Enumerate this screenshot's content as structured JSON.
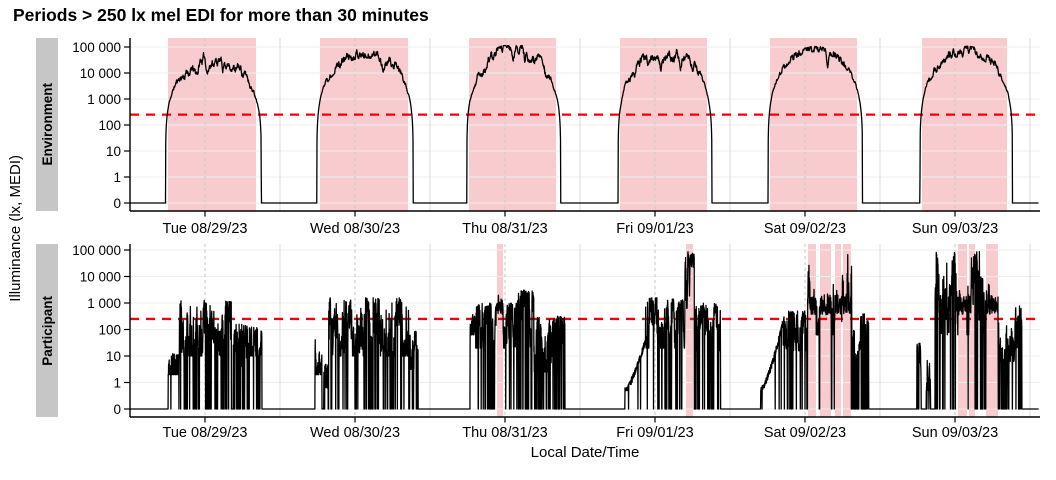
{
  "title": "Periods > 250 lx mel EDI for more than 30 minutes",
  "chart_data": {
    "type": "line",
    "title": "Periods > 250 lx mel EDI for more than 30 minutes",
    "xlabel": "Local Date/Time",
    "ylabel": "Illuminance (lx, MEDI)",
    "y_scale": "symlog",
    "y_ticks": {
      "values": [
        0,
        1,
        10,
        100,
        1000,
        10000,
        100000
      ],
      "labels": [
        "0",
        "1",
        "10",
        "100",
        "1 000",
        "10 000",
        "100 000"
      ]
    },
    "x_ticks": [
      "Tue 08/29/23",
      "Wed 08/30/23",
      "Thu 08/31/23",
      "Fri 09/01/23",
      "Sat 09/02/23",
      "Sun 09/03/23"
    ],
    "x_tick_hours": [
      12,
      36,
      60,
      84,
      108,
      132
    ],
    "x_range_hours": [
      0,
      145.4
    ],
    "threshold_lx": 250,
    "threshold_style": "dashed",
    "threshold_color": "#f40000",
    "band_color": "#f8cbce",
    "line_color": "#000000",
    "grid": {
      "h_color": "#ececec",
      "v_solid_color": "#e0e0e0",
      "v_dashed_color": "#cfcfcf"
    },
    "seed": 11,
    "panels": [
      {
        "name": "Environment",
        "bands": [
          [
            6.08,
            20.16
          ],
          [
            30.4,
            44.48
          ],
          [
            54.24,
            68.16
          ],
          [
            78.4,
            92.32
          ],
          [
            102.4,
            116.32
          ],
          [
            126.72,
            140.32
          ]
        ],
        "days": [
          {
            "wake": 5.7,
            "dark": 21.0,
            "peak": 4.55,
            "rough": 0.3,
            "dips": [
              [
                10.6,
                0.5,
                0.5
              ],
              [
                12.4,
                0.4,
                0.3
              ],
              [
                14.8,
                0.35,
                0.25
              ]
            ]
          },
          {
            "wake": 29.9,
            "dark": 45.3,
            "peak": 4.8,
            "rough": 0.22,
            "dips": [
              [
                40.5,
                0.35,
                0.3
              ]
            ]
          },
          {
            "wake": 53.9,
            "dark": 68.9,
            "peak": 4.85,
            "rough": 0.28,
            "dips": [
              [
                61.3,
                0.5,
                0.35
              ],
              [
                63.2,
                0.45,
                0.2
              ]
            ]
          },
          {
            "wake": 78.1,
            "dark": 93.1,
            "peak": 4.75,
            "rough": 0.28,
            "dips": [
              [
                85.0,
                0.4,
                0.3
              ],
              [
                88.0,
                0.5,
                0.25
              ]
            ]
          },
          {
            "wake": 102.1,
            "dark": 117.2,
            "peak": 4.92,
            "rough": 0.1,
            "dips": [
              [
                111.6,
                0.55,
                0.18
              ]
            ]
          },
          {
            "wake": 126.4,
            "dark": 141.2,
            "peak": 4.85,
            "rough": 0.18,
            "dips": [
              [
                133.2,
                0.35,
                0.2
              ]
            ]
          }
        ]
      },
      {
        "name": "Participant",
        "bands": [
          [
            58.72,
            59.68
          ],
          [
            88.96,
            90.08
          ],
          [
            108.48,
            109.76
          ],
          [
            110.4,
            112.16
          ],
          [
            112.8,
            113.76
          ],
          [
            114.08,
            115.36
          ],
          [
            132.48,
            133.92
          ],
          [
            134.24,
            135.2
          ],
          [
            136.96,
            138.88
          ]
        ],
        "segments": [
          {
            "s": 6.1,
            "e": 7.9,
            "lo": 0.3,
            "hi": 1.1,
            "drop": 0.02,
            "spike": 0
          },
          {
            "s": 7.9,
            "e": 16.2,
            "lo": 1.0,
            "hi": 3.1,
            "drop": 0.1,
            "spike": 0.05
          },
          {
            "s": 16.5,
            "e": 19.0,
            "lo": 0.6,
            "hi": 2.2,
            "drop": 0.18,
            "spike": 0.02
          },
          {
            "s": 19.1,
            "e": 21.1,
            "lo": 1.0,
            "hi": 2.1,
            "drop": 0.05,
            "spike": 0
          },
          {
            "s": 29.6,
            "e": 30.7,
            "lo": 0.3,
            "hi": 2.0,
            "drop": 0.05,
            "spike": 0
          },
          {
            "s": 31.0,
            "e": 31.8,
            "lo": -0.2,
            "hi": 0.7,
            "drop": 0.1,
            "spike": 0
          },
          {
            "s": 31.8,
            "e": 44.6,
            "lo": 1.0,
            "hi": 3.2,
            "drop": 0.12,
            "spike": 0.05
          },
          {
            "s": 44.6,
            "e": 46.1,
            "lo": 0.5,
            "hi": 2.0,
            "drop": 0.25,
            "spike": 0
          },
          {
            "s": 54.4,
            "e": 55.3,
            "lo": 1.8,
            "hi": 2.6,
            "drop": 0.0,
            "spike": 0
          },
          {
            "s": 55.3,
            "e": 62.0,
            "lo": 1.3,
            "hi": 3.0,
            "drop": 0.1,
            "spike": 0.04
          },
          {
            "s": 62.0,
            "e": 64.6,
            "lo": 1.0,
            "hi": 3.5,
            "drop": 0.15,
            "spike": 0.08
          },
          {
            "s": 64.6,
            "e": 69.6,
            "lo": 0.4,
            "hi": 2.5,
            "drop": 0.22,
            "spike": 0.02
          },
          {
            "s": 79.2,
            "e": 82.5,
            "lo": -0.3,
            "hi": 1.6,
            "drop": 0.03,
            "spike": 0,
            "ramp": 1
          },
          {
            "s": 82.5,
            "e": 88.8,
            "lo": 1.3,
            "hi": 3.2,
            "drop": 0.12,
            "spike": 0.05
          },
          {
            "s": 88.8,
            "e": 90.3,
            "lo": 2.8,
            "hi": 4.95,
            "drop": 0.04,
            "spike": 0.3
          },
          {
            "s": 90.3,
            "e": 94.5,
            "lo": 1.2,
            "hi": 3.0,
            "drop": 0.18,
            "spike": 0.03
          },
          {
            "s": 100.9,
            "e": 104.5,
            "lo": -0.3,
            "hi": 2.3,
            "drop": 0.02,
            "spike": 0,
            "ramp": 1
          },
          {
            "s": 104.5,
            "e": 108.4,
            "lo": 1.2,
            "hi": 2.7,
            "drop": 0.1,
            "spike": 0.02
          },
          {
            "s": 108.4,
            "e": 115.5,
            "lo": 1.8,
            "hi": 4.95,
            "drop": 0.13,
            "spike": 0.1
          },
          {
            "s": 115.5,
            "e": 118.2,
            "lo": 0.4,
            "hi": 2.6,
            "drop": 0.25,
            "spike": 0.02
          },
          {
            "s": 125.9,
            "e": 126.6,
            "lo": 0.0,
            "hi": 1.5,
            "drop": 0.05,
            "spike": 0
          },
          {
            "s": 127.4,
            "e": 128.1,
            "lo": -0.3,
            "hi": 0.9,
            "drop": 0.1,
            "spike": 0
          },
          {
            "s": 128.8,
            "e": 137.6,
            "lo": 1.8,
            "hi": 4.95,
            "drop": 0.12,
            "spike": 0.08
          },
          {
            "s": 137.6,
            "e": 142.7,
            "lo": 0.8,
            "hi": 2.9,
            "drop": 0.2,
            "spike": 0.03
          }
        ]
      }
    ]
  }
}
